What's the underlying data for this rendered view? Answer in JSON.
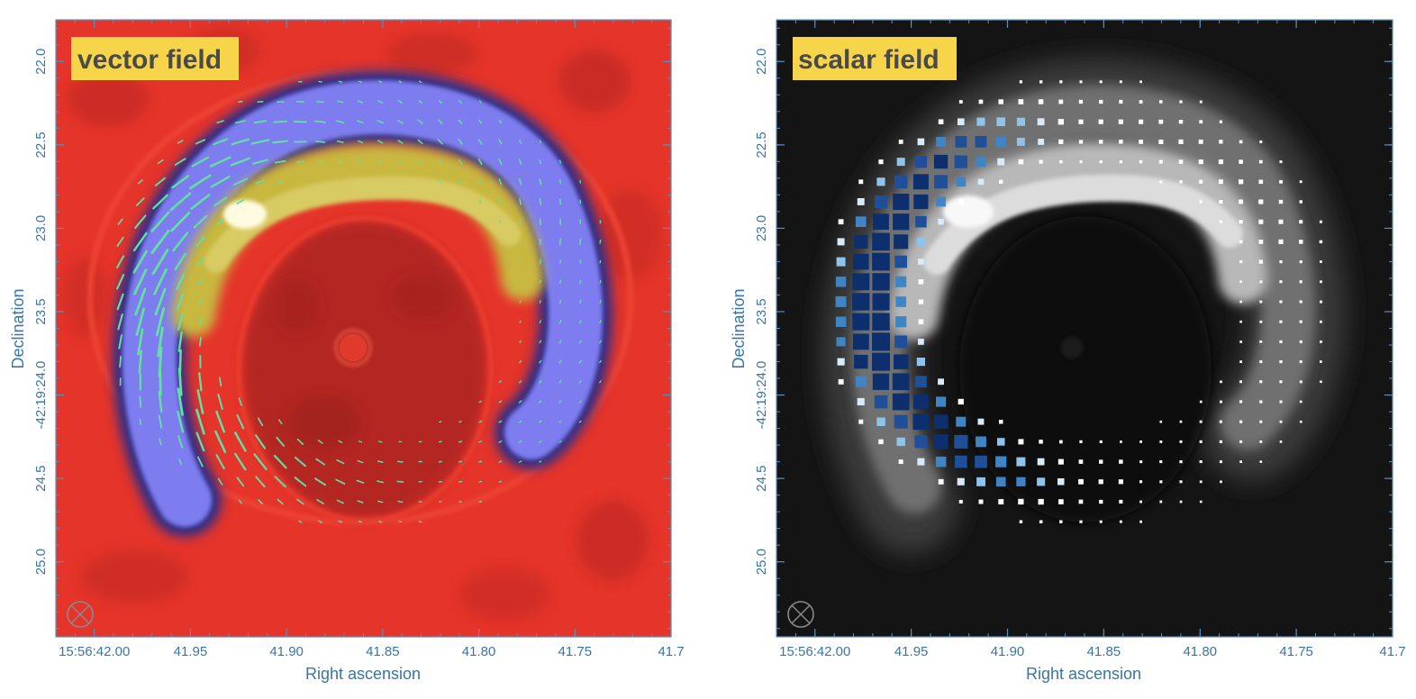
{
  "chart_data": [
    {
      "type": "vector_field",
      "title": "vector field",
      "xlabel": "Right ascension",
      "ylabel": "Declination",
      "x_ticks": [
        "15:56:42.00",
        "41.95",
        "41.90",
        "41.85",
        "41.80",
        "41.75",
        "41.7"
      ],
      "y_ticks": [
        "22.0",
        "22.5",
        "23.0",
        "23.5",
        "-42:19:24.0",
        "24.5",
        "25.0"
      ],
      "y_ticks_rotated": true,
      "xlim": [
        "15:56:42.02",
        "15:56:41.70"
      ],
      "ylim": [
        "-42:19:25.45",
        "-42:19:21.75"
      ],
      "background_colormap": [
        "#c52a24",
        "#ee3528",
        "#3a3aa0",
        "#8f8ff2",
        "#c2b53c",
        "#ffffff"
      ],
      "vector_color": "#62e0a0",
      "ring_center": [
        "15:56:41.86",
        "-42:19:23.85"
      ],
      "beam_symbol": "circle-cross",
      "grid": false
    },
    {
      "type": "scalar_field",
      "title": "scalar field",
      "xlabel": "Right ascension",
      "ylabel": "Declination",
      "x_ticks": [
        "15:56:42.00",
        "41.95",
        "41.90",
        "41.85",
        "41.80",
        "41.75",
        "41.7"
      ],
      "y_ticks": [
        "22.0",
        "22.5",
        "23.0",
        "23.5",
        "-42:19:24.0",
        "24.5",
        "25.0"
      ],
      "y_ticks_rotated": true,
      "xlim": [
        "15:56:42.02",
        "15:56:41.70"
      ],
      "ylim": [
        "-42:19:25.45",
        "-42:19:21.75"
      ],
      "background_colormap": [
        "#000000",
        "#ffffff"
      ],
      "marker_colormap": [
        "#ffffff",
        "#8fc3ea",
        "#3f85c6",
        "#0d2f6e"
      ],
      "marker_shape": "square",
      "beam_symbol": "circle-cross",
      "grid": false
    }
  ]
}
